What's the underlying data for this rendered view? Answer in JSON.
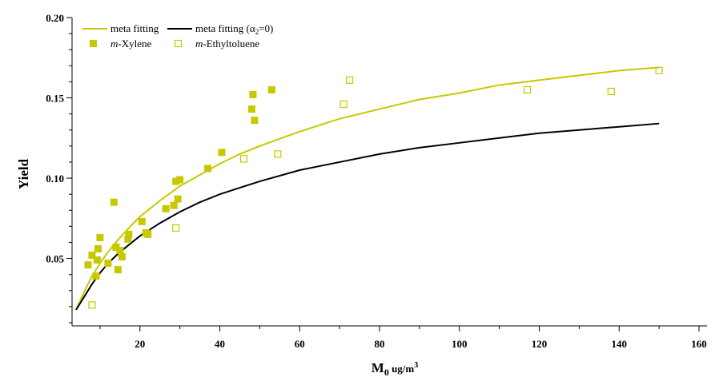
{
  "chart_data": {
    "type": "scatter",
    "xlabel": "M",
    "xlabel_sub": "0",
    "xlabel_unit": " ug/m",
    "xlabel_unit_sup": "3",
    "ylabel": "Yield",
    "xlim": [
      3,
      162
    ],
    "ylim": [
      0.008,
      0.2
    ],
    "x_ticks": [
      20,
      40,
      60,
      80,
      100,
      120,
      140,
      160
    ],
    "x_tick_labels": [
      "20",
      "40",
      "60",
      "80",
      "100",
      "120",
      "140",
      "160"
    ],
    "y_ticks": [
      0.05,
      0.1,
      0.15,
      0.2
    ],
    "y_tick_labels": [
      "0.05",
      "0.10",
      "0.15",
      "0.20"
    ],
    "legend": {
      "placement": "top-left",
      "entries": [
        {
          "label": "meta fitting",
          "marker": "line",
          "color": "#c8c800"
        },
        {
          "label_prefix": "meta fitting (α",
          "label_sub": "2",
          "label_suffix": "=0)",
          "marker": "line",
          "color": "#000000"
        },
        {
          "label_italic": "m",
          "label_rest": "-Xylene",
          "marker": "filled-square",
          "color": "#c8c800"
        },
        {
          "label_italic": "m",
          "label_rest": "-Ethyltoluene",
          "marker": "open-square",
          "color": "#c8c800"
        }
      ]
    },
    "series": [
      {
        "name": "meta fitting",
        "kind": "line",
        "color": "#c8c800",
        "x": [
          4,
          6,
          8,
          10,
          12,
          15,
          18,
          20,
          25,
          30,
          35,
          40,
          45,
          50,
          60,
          70,
          80,
          90,
          100,
          110,
          120,
          130,
          140,
          150
        ],
        "y": [
          0.018,
          0.029,
          0.039,
          0.047,
          0.054,
          0.063,
          0.071,
          0.076,
          0.086,
          0.095,
          0.102,
          0.109,
          0.115,
          0.12,
          0.129,
          0.137,
          0.143,
          0.149,
          0.153,
          0.158,
          0.161,
          0.164,
          0.167,
          0.169
        ]
      },
      {
        "name": "meta fitting (α2=0)",
        "kind": "line",
        "color": "#000000",
        "x": [
          4,
          6,
          8,
          10,
          12,
          15,
          18,
          20,
          25,
          30,
          35,
          40,
          45,
          50,
          60,
          70,
          80,
          90,
          100,
          110,
          120,
          130,
          140,
          150
        ],
        "y": [
          0.018,
          0.026,
          0.034,
          0.041,
          0.047,
          0.054,
          0.06,
          0.064,
          0.072,
          0.079,
          0.085,
          0.09,
          0.094,
          0.098,
          0.105,
          0.11,
          0.115,
          0.119,
          0.122,
          0.125,
          0.128,
          0.13,
          0.132,
          0.134
        ]
      },
      {
        "name": "m-Xylene",
        "kind": "points",
        "marker": "filled-square",
        "color": "#c8c800",
        "x": [
          7,
          8,
          9,
          9.3,
          9.5,
          10,
          12,
          13.5,
          14,
          14.5,
          15,
          15.5,
          17,
          17.2,
          20.5,
          21.5,
          22,
          26.5,
          28.5,
          29,
          29.5,
          30,
          37,
          40.5,
          48,
          48.3,
          48.7,
          53
        ],
        "y": [
          0.046,
          0.052,
          0.039,
          0.049,
          0.056,
          0.063,
          0.047,
          0.085,
          0.057,
          0.043,
          0.055,
          0.051,
          0.062,
          0.065,
          0.073,
          0.066,
          0.065,
          0.081,
          0.083,
          0.098,
          0.087,
          0.099,
          0.106,
          0.116,
          0.143,
          0.152,
          0.136,
          0.155
        ]
      },
      {
        "name": "m-Ethyltoluene",
        "kind": "points",
        "marker": "open-square",
        "color": "#c8c800",
        "x": [
          8,
          29,
          46,
          54.5,
          71,
          72.5,
          117,
          138,
          150
        ],
        "y": [
          0.021,
          0.069,
          0.112,
          0.115,
          0.146,
          0.161,
          0.155,
          0.154,
          0.167
        ]
      }
    ]
  }
}
